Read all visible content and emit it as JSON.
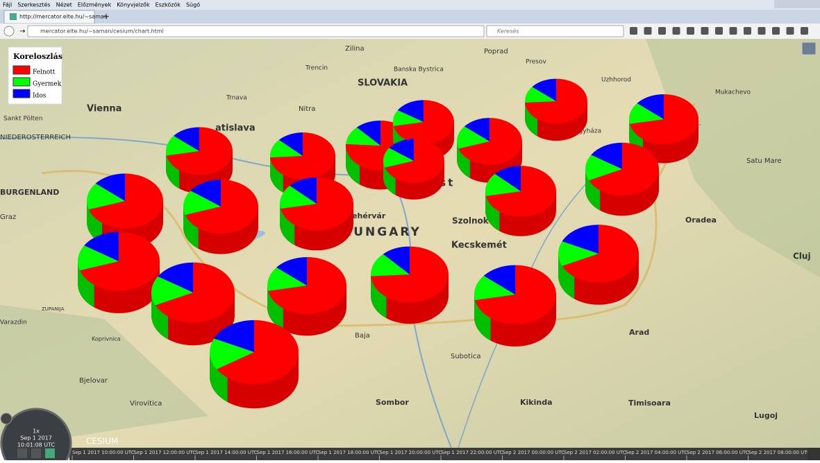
{
  "browser": {
    "menu": [
      "Fájl",
      "Szerkesztés",
      "Nézet",
      "Előzmények",
      "Könyvjelzők",
      "Eszközök",
      "Súgó"
    ],
    "tab_title": "http://mercator.elte.hu/~saman",
    "url": "mercator.elte.hu/~saman/cesium/chart.html",
    "search_placeholder": "Keresés"
  },
  "legend": {
    "title": "Koreloszlás",
    "items": [
      {
        "label": "Felnott",
        "color": "#ff0000"
      },
      {
        "label": "Gyermek",
        "color": "#00ff00"
      },
      {
        "label": "Idos",
        "color": "#0000ff"
      }
    ]
  },
  "pies": [
    [
      72,
      14,
      14
    ],
    [
      74,
      13,
      13
    ],
    [
      70,
      15,
      15
    ],
    [
      76,
      12,
      12
    ],
    [
      72,
      12,
      16
    ],
    [
      70,
      16,
      14
    ],
    [
      74,
      12,
      14
    ],
    [
      72,
      14,
      14
    ],
    [
      68,
      16,
      16
    ],
    [
      72,
      15,
      13
    ],
    [
      70,
      16,
      14
    ],
    [
      70,
      15,
      15
    ],
    [
      72,
      15,
      13
    ],
    [
      70,
      14,
      16
    ],
    [
      68,
      16,
      16
    ],
    [
      72,
      14,
      14
    ],
    [
      74,
      14,
      12
    ],
    [
      72,
      14,
      14
    ],
    [
      68,
      14,
      18
    ],
    [
      66,
      16,
      18
    ]
  ],
  "map_labels": [
    "Vienna",
    "Sankt Pölten",
    "atislava",
    "Trnava",
    "Nitra",
    "Trencin",
    "Zilina",
    "Banska Bystrica",
    "Poprad",
    "Presov",
    "SLOVAKIA",
    "Uzhhorod",
    "Mukachevo",
    "Satu Mare",
    "Oradea",
    "Cluj",
    "Arad",
    "Timisoara",
    "Lugoj",
    "Szolnok",
    "Kecskemét",
    "est",
    "Fehérvár",
    "HUNGARY",
    "Balaton",
    "Graz",
    "Baja",
    "Subotica",
    "Sombor",
    "Kikinda",
    "Koprivnica",
    "Bjelovar",
    "Virovitica",
    "Varazdin",
    "Nyíregyháza",
    "BURGENLAND",
    "NIEDEROSTERREICH",
    "ZUPANIJA"
  ],
  "clock": {
    "speed": "1x",
    "date": "Sep 1 2017",
    "time": "10:01:08 UTC"
  },
  "logo": "CESIUM",
  "timeline": [
    "Sep 1 2017 10:00:00 UTC",
    "Sep 1 2017 12:00:00 UTC",
    "Sep 1 2017 14:00:00 UTC",
    "Sep 1 2017 16:00:00 UTC",
    "Sep 1 2017 18:00:00 UTC",
    "Sep 1 2017 20:00:00 UTC",
    "Sep 1 2017 22:00:00 UTC",
    "Sep 2 2017 00:00:00 UTC",
    "Sep 2 2017 02:00:00 UTC",
    "Sep 2 2017 04:00:00 UTC",
    "Sep 2 2017 06:00:00 UTC",
    "Sep 2 2017 08:00:00 UTC"
  ]
}
